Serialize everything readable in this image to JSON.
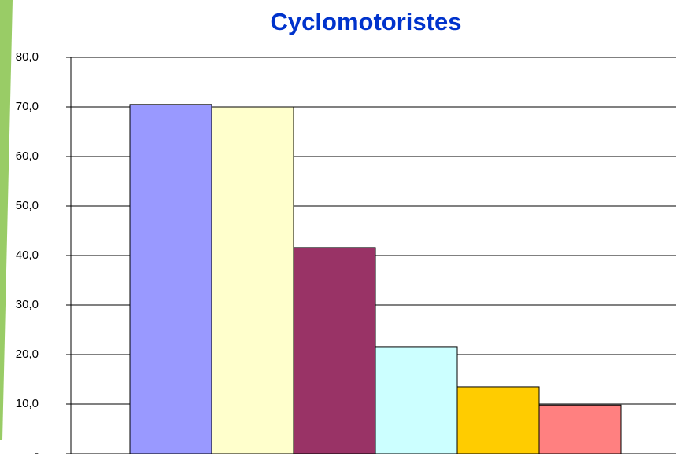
{
  "chart_data": {
    "type": "bar",
    "title": "Cyclomotoristes",
    "categories": [
      null,
      null,
      null,
      null,
      null,
      null
    ],
    "values": [
      70.5,
      70.0,
      41.6,
      21.6,
      13.5,
      9.8
    ],
    "colors": [
      "#9999ff",
      "#ffffcc",
      "#993366",
      "#ccffff",
      "#ffcc00",
      "#ff8080"
    ],
    "ylim": [
      0,
      80
    ],
    "yticks": [
      {
        "value": 0,
        "label": "-"
      },
      {
        "value": 10,
        "label": "10,0"
      },
      {
        "value": 20,
        "label": "20,0"
      },
      {
        "value": 30,
        "label": "30,0"
      },
      {
        "value": 40,
        "label": "40,0"
      },
      {
        "value": 50,
        "label": "50,0"
      },
      {
        "value": 60,
        "label": "60,0"
      },
      {
        "value": 70,
        "label": "70,0"
      },
      {
        "value": 80,
        "label": "80,0"
      }
    ],
    "grid": true
  }
}
